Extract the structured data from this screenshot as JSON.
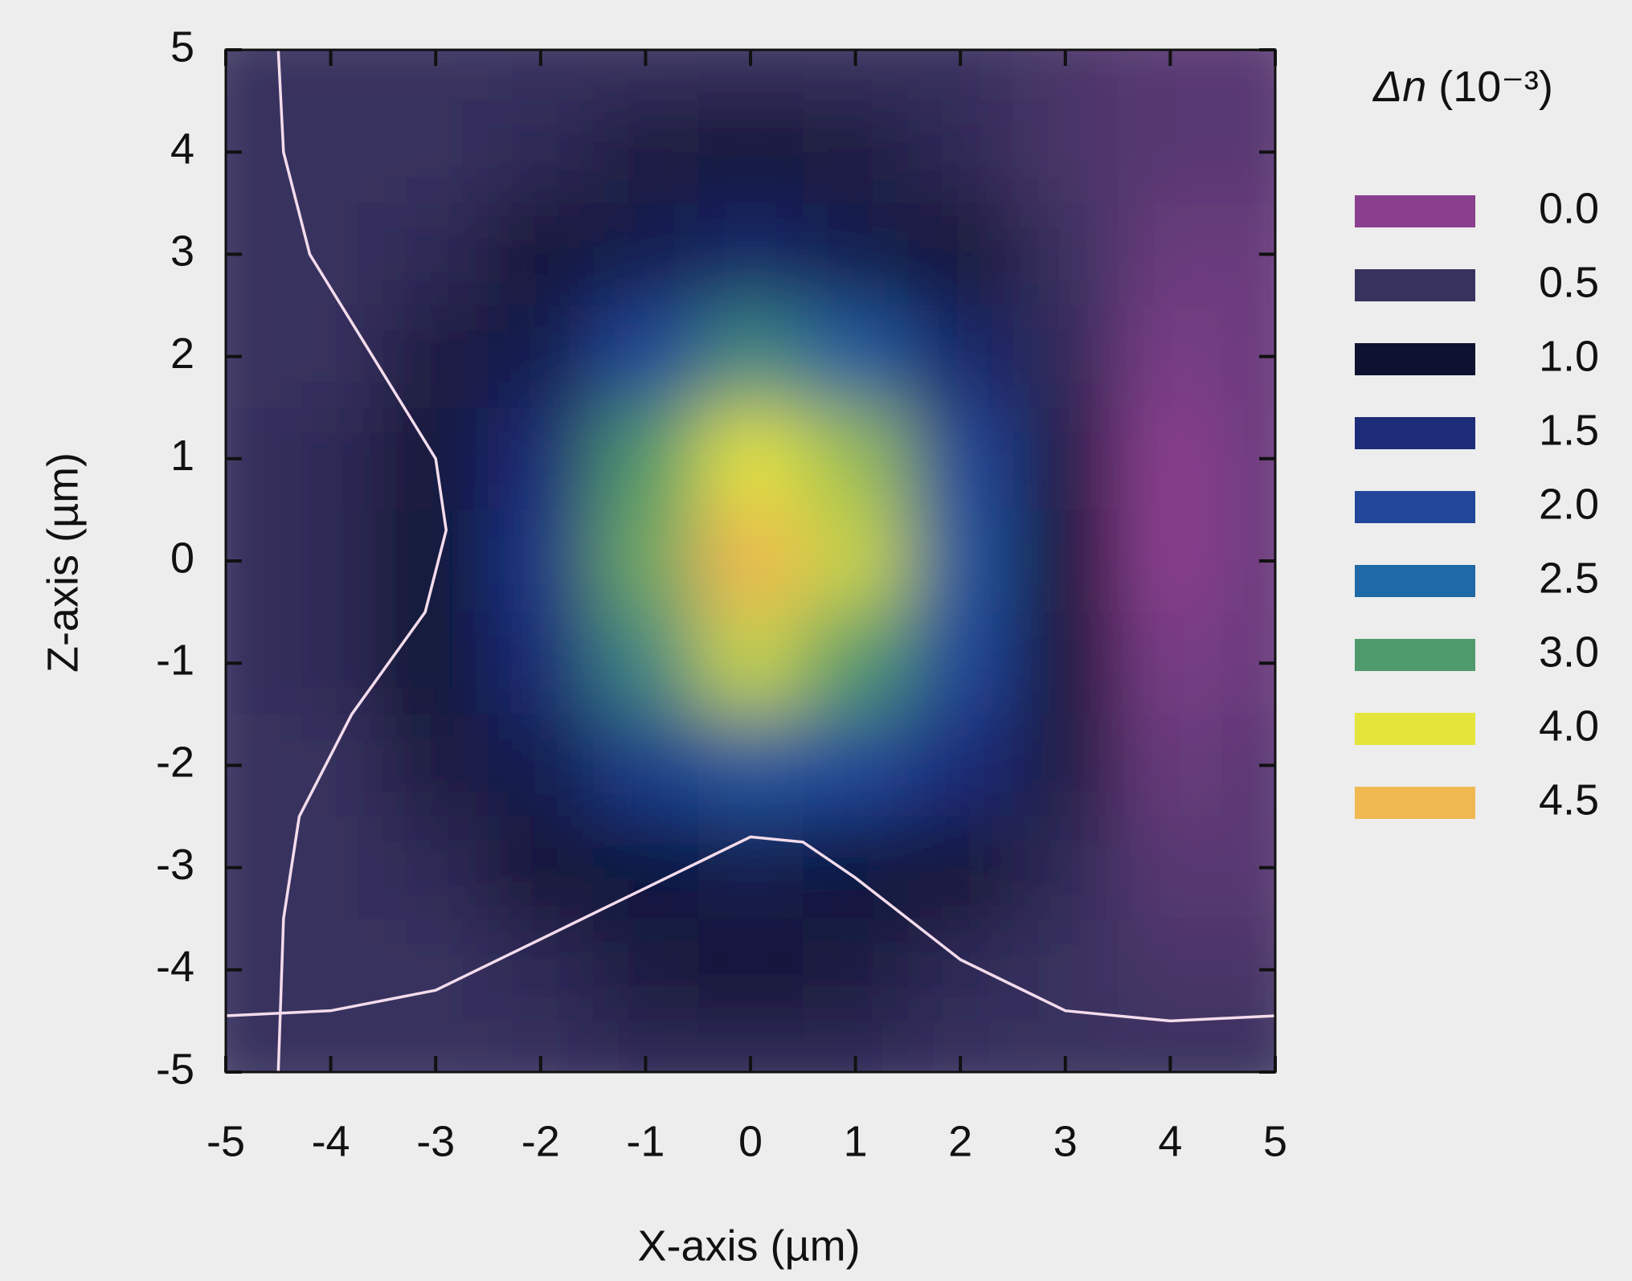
{
  "chart_data": {
    "type": "heatmap",
    "xlabel": "X-axis (µm)",
    "ylabel": "Z-axis (µm)",
    "xlim": [
      -5,
      5
    ],
    "ylim": [
      -5,
      5
    ],
    "xticks": [
      -5,
      -4,
      -3,
      -2,
      -1,
      0,
      1,
      2,
      3,
      4,
      5
    ],
    "yticks": [
      -5,
      -4,
      -3,
      -2,
      -1,
      0,
      1,
      2,
      3,
      4,
      5
    ],
    "x": [
      -5,
      -4,
      -3,
      -2,
      -1,
      0,
      1,
      2,
      3,
      4,
      5
    ],
    "z": [
      5,
      4,
      3,
      2,
      1,
      0,
      -1,
      -2,
      -3,
      -4,
      -5
    ],
    "values": [
      [
        0.5,
        0.5,
        0.5,
        0.5,
        0.5,
        0.5,
        0.5,
        0.5,
        0.4,
        0.3,
        0.3
      ],
      [
        0.5,
        0.5,
        0.5,
        0.6,
        0.8,
        0.9,
        0.8,
        0.6,
        0.4,
        0.3,
        0.3
      ],
      [
        0.5,
        0.5,
        0.6,
        0.9,
        1.2,
        1.4,
        1.2,
        0.9,
        0.5,
        0.2,
        0.2
      ],
      [
        0.5,
        0.5,
        0.8,
        1.2,
        2.0,
        2.8,
        2.3,
        1.4,
        0.6,
        0.1,
        0.2
      ],
      [
        0.5,
        0.6,
        0.9,
        1.5,
        3.0,
        4.0,
        3.5,
        2.0,
        0.8,
        0.0,
        0.2
      ],
      [
        0.5,
        0.6,
        1.0,
        1.7,
        3.2,
        4.5,
        3.8,
        2.2,
        0.9,
        0.0,
        0.2
      ],
      [
        0.5,
        0.6,
        1.0,
        1.5,
        2.8,
        3.8,
        3.0,
        2.0,
        0.9,
        0.1,
        0.2
      ],
      [
        0.5,
        0.5,
        0.8,
        1.2,
        1.8,
        2.2,
        2.0,
        1.5,
        0.8,
        0.2,
        0.3
      ],
      [
        0.5,
        0.5,
        0.6,
        0.9,
        1.1,
        1.2,
        1.1,
        0.9,
        0.6,
        0.3,
        0.3
      ],
      [
        0.5,
        0.5,
        0.5,
        0.6,
        0.8,
        0.9,
        0.8,
        0.6,
        0.5,
        0.4,
        0.4
      ],
      [
        0.5,
        0.5,
        0.5,
        0.5,
        0.6,
        0.6,
        0.6,
        0.5,
        0.5,
        0.5,
        0.5
      ]
    ],
    "colorbar": {
      "symbol": "Δn",
      "unit": "(10⁻³)",
      "levels": [
        {
          "value": 0,
          "label": "0.0"
        },
        {
          "value": 0.5,
          "label": "0.5"
        },
        {
          "value": 1,
          "label": "1.0"
        },
        {
          "value": 1.5,
          "label": "1.5"
        },
        {
          "value": 2,
          "label": "2.0"
        },
        {
          "value": 2.5,
          "label": "2.5"
        },
        {
          "value": 3,
          "label": "3.0"
        },
        {
          "value": 4,
          "label": "4.0"
        },
        {
          "value": 4.5,
          "label": "4.5"
        }
      ],
      "colors": [
        "#8a3f8e",
        "#37335f",
        "#0e1230",
        "#1c2c78",
        "#21469a",
        "#1f6aa6",
        "#4f9a6c",
        "#e4e43a",
        "#f0b850"
      ]
    },
    "profiles": [
      {
        "color": "#f4dcec",
        "x": [
          -5,
          -4,
          -3,
          -2,
          -1,
          0,
          0.5,
          1,
          2,
          3,
          4,
          5
        ],
        "z": [
          -4.45,
          -4.4,
          -4.2,
          -3.7,
          -3.2,
          -2.7,
          -2.75,
          -3.1,
          -3.9,
          -4.4,
          -4.5,
          -4.45
        ]
      },
      {
        "color": "#f4dcec",
        "x": [
          -4.5,
          -4.45,
          -4.2,
          -3.6,
          -3.0,
          -2.9,
          -3.1,
          -3.8,
          -4.3,
          -4.45,
          -4.5
        ],
        "z": [
          5,
          4,
          3,
          2,
          1,
          0.3,
          -0.5,
          -1.5,
          -2.5,
          -3.5,
          -5
        ]
      }
    ]
  }
}
